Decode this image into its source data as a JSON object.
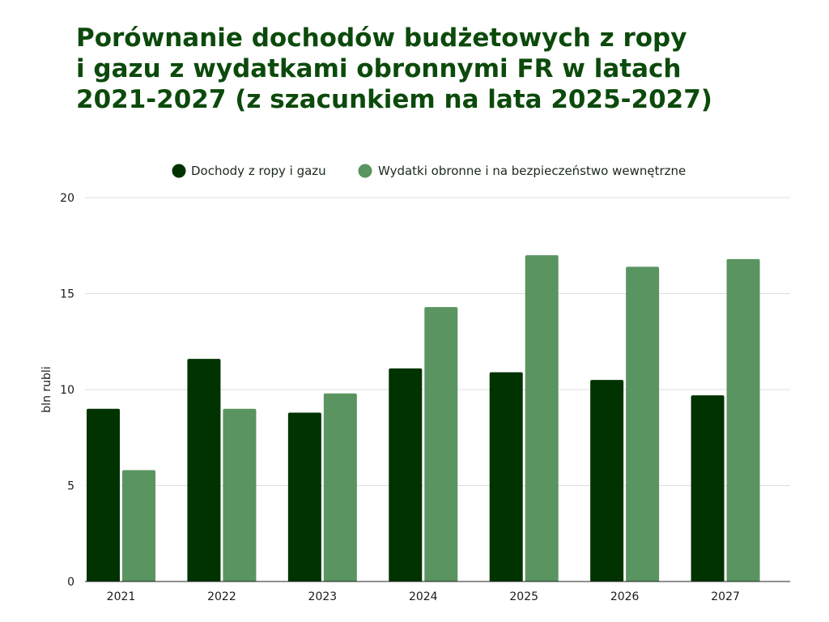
{
  "chart_data": {
    "type": "bar",
    "title_lines": [
      "Porównanie dochodów budżetowych z ropy",
      "i gazu z wydatkami obronnymi FR w latach",
      "2021-2027 (z szacunkiem na lata 2025-2027)"
    ],
    "ylabel": "bln rubli",
    "xlabel": "",
    "ylim": [
      0,
      20
    ],
    "yticks": [
      "0",
      "5",
      "10",
      "15",
      "20"
    ],
    "grid": true,
    "legend_position": "top-center",
    "categories": [
      "2021",
      "2022",
      "2023",
      "2024",
      "2025",
      "2026",
      "2027"
    ],
    "series": [
      {
        "name": "Dochody z ropy i gazu",
        "color": "#003300",
        "values": [
          9.0,
          11.6,
          8.8,
          11.1,
          10.9,
          10.5,
          9.7
        ]
      },
      {
        "name": "Wydatki obronne i na bezpieczeństwo wewnętrzne",
        "color": "#5a9460",
        "values": [
          5.8,
          9.0,
          9.8,
          14.3,
          17.0,
          16.4,
          16.8
        ]
      }
    ]
  }
}
